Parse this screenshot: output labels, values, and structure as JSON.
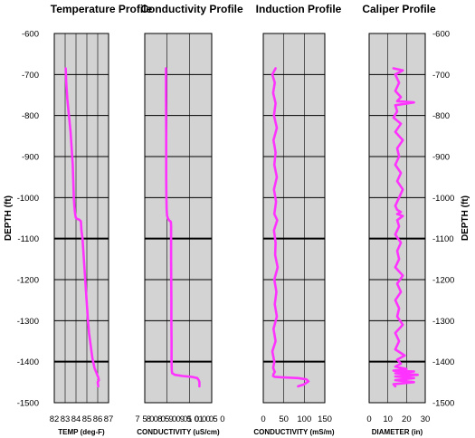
{
  "chart_data": {
    "type": "line",
    "y_axis": {
      "label": "DEPTH (ft)",
      "ylim": [
        -1500,
        -600
      ],
      "ticks": [
        -600,
        -700,
        -800,
        -900,
        -1000,
        -1100,
        -1200,
        -1300,
        -1400,
        -1500
      ],
      "tick_labels": [
        "-600",
        "-700",
        "-800",
        "-900",
        "-1000",
        "-1100",
        "-1200",
        "-1300",
        "-1400",
        "-1500"
      ],
      "thick_lines": [
        -1100,
        -1400
      ]
    },
    "panels": [
      {
        "title": "Temperature Profile",
        "xlabel": "TEMP (deg-F)",
        "xlim": [
          82,
          87
        ],
        "ticks": [
          82,
          83,
          84,
          85,
          86,
          87
        ],
        "tick_labels": [
          "82",
          "83",
          "84",
          "85",
          "86",
          "87"
        ],
        "gridlines": [
          83,
          84,
          85,
          86
        ],
        "series": [
          {
            "color": "#ff33ff",
            "x": [
              83.05,
              83.1,
              83.2,
              83.35,
              83.5,
              83.6,
              83.7,
              83.75,
              83.8,
              83.85,
              83.9,
              83.95,
              84.0,
              84.1,
              84.3,
              84.45,
              84.5,
              84.6,
              84.7,
              84.8,
              84.9,
              85.0,
              85.1,
              85.2,
              85.35,
              85.5,
              85.7,
              85.85,
              85.95,
              86.05,
              86.1,
              86.0,
              86.05
            ],
            "y": [
              -685,
              -720,
              -760,
              -800,
              -840,
              -880,
              -920,
              -960,
              -1000,
              -1020,
              -1035,
              -1045,
              -1050,
              -1052,
              -1054,
              -1058,
              -1080,
              -1100,
              -1140,
              -1180,
              -1220,
              -1260,
              -1300,
              -1330,
              -1360,
              -1390,
              -1415,
              -1425,
              -1432,
              -1438,
              -1445,
              -1450,
              -1460
            ]
          }
        ]
      },
      {
        "title": "Conductivity Profile",
        "xlabel": "CONDUCTIVITY (uS/cm)",
        "xlim": [
          750,
          1050
        ],
        "ticks": [
          750,
          800,
          850,
          900,
          950,
          1000,
          1050
        ],
        "tick_labels": [
          "7 5 0",
          "8 0 0",
          "8 5 0",
          "9 0 0",
          "9 5 0",
          "1 0 0 0",
          "1 0 5 0"
        ],
        "gridlines": [
          850,
          950
        ],
        "series": [
          {
            "color": "#ff33ff",
            "x": [
              845,
              845,
              846,
              846,
              847,
              848,
              850,
              855,
              860,
              865,
              867,
              868,
              868,
              869,
              869,
              870,
              870,
              871,
              872,
              873,
              885,
              920,
              960,
              985,
              992,
              995,
              995
            ],
            "y": [
              -685,
              -750,
              -850,
              -950,
              -1000,
              -1030,
              -1045,
              -1052,
              -1056,
              -1058,
              -1060,
              -1070,
              -1150,
              -1250,
              -1300,
              -1350,
              -1400,
              -1420,
              -1425,
              -1428,
              -1432,
              -1435,
              -1437,
              -1440,
              -1445,
              -1450,
              -1460
            ]
          }
        ]
      },
      {
        "title": "Induction Profile",
        "xlabel": "CONDUCTIVITY (mS/m)",
        "xlim": [
          0,
          150
        ],
        "ticks": [
          0,
          50,
          100,
          150
        ],
        "tick_labels": [
          "0",
          "50",
          "100",
          "150"
        ],
        "gridlines": [
          50,
          100
        ],
        "series": [
          {
            "color": "#ff33ff",
            "x": [
              30,
              22,
              28,
              24,
              30,
              26,
              33,
              25,
              30,
              27,
              33,
              26,
              31,
              27,
              34,
              26,
              30,
              29,
              35,
              27,
              32,
              28,
              33,
              25,
              30,
              22,
              27,
              24,
              28,
              25,
              24,
              28,
              45,
              85,
              105,
              110,
              100,
              85
            ],
            "y": [
              -685,
              -700,
              -720,
              -745,
              -770,
              -800,
              -830,
              -860,
              -890,
              -920,
              -950,
              -980,
              -1010,
              -1040,
              -1055,
              -1080,
              -1110,
              -1140,
              -1170,
              -1200,
              -1230,
              -1260,
              -1290,
              -1320,
              -1350,
              -1375,
              -1400,
              -1415,
              -1425,
              -1430,
              -1435,
              -1437,
              -1438,
              -1440,
              -1443,
              -1448,
              -1455,
              -1460
            ]
          }
        ]
      },
      {
        "title": "Caliper Profile",
        "xlabel": "DIAMETER (in)",
        "xlim": [
          0,
          30
        ],
        "ticks": [
          0,
          10,
          20,
          30
        ],
        "tick_labels": [
          "0",
          "10",
          "20",
          "30"
        ],
        "gridlines": [
          10,
          20
        ],
        "series": [
          {
            "color": "#ff33ff",
            "x": [
              13,
              18,
              14,
              16,
              14,
              17,
              15,
              24,
              14,
              15,
              13,
              17,
              14,
              18,
              15,
              16,
              14,
              17,
              15,
              18,
              16,
              14,
              15,
              17,
              15,
              18,
              15,
              16,
              14,
              17,
              15,
              16,
              14,
              18,
              15,
              17,
              14,
              16,
              15,
              18,
              14,
              16,
              14,
              19,
              15,
              17,
              14,
              20,
              13,
              24,
              14,
              26,
              14,
              24,
              14,
              24,
              13,
              14
            ],
            "y": [
              -685,
              -690,
              -700,
              -720,
              -740,
              -755,
              -765,
              -768,
              -775,
              -790,
              -805,
              -820,
              -840,
              -860,
              -880,
              -900,
              -920,
              -940,
              -960,
              -980,
              -1000,
              -1020,
              -1030,
              -1035,
              -1040,
              -1045,
              -1055,
              -1070,
              -1090,
              -1110,
              -1130,
              -1150,
              -1170,
              -1190,
              -1210,
              -1230,
              -1250,
              -1270,
              -1290,
              -1310,
              -1330,
              -1350,
              -1370,
              -1385,
              -1395,
              -1405,
              -1412,
              -1418,
              -1422,
              -1424,
              -1428,
              -1432,
              -1436,
              -1440,
              -1445,
              -1450,
              -1455,
              -1460
            ]
          }
        ]
      }
    ]
  }
}
